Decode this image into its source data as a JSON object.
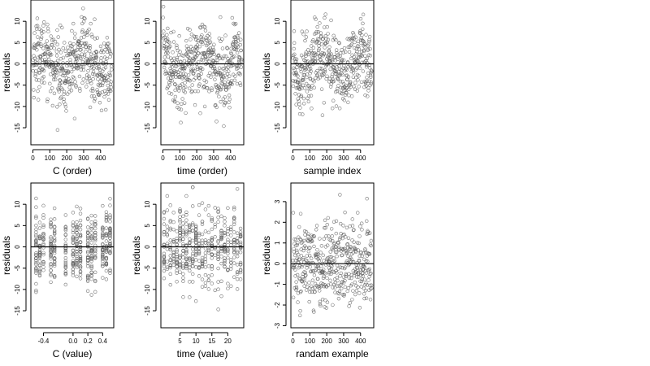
{
  "figure": {
    "panels_layout": "2x3 grid",
    "point_color": "#5a5a5a",
    "reference_line_color": "#000000"
  },
  "chart_data": [
    {
      "type": "scatter",
      "xlabel": "C (order)",
      "ylabel": "residuals",
      "xticks": [
        0,
        100,
        200,
        300,
        400
      ],
      "yticks": [
        -15,
        -10,
        -5,
        0,
        5,
        10
      ],
      "xlim": [
        -12,
        478
      ],
      "ylim": [
        -19,
        15
      ],
      "hline": 0,
      "n_points": 466,
      "pattern": "order"
    },
    {
      "type": "scatter",
      "xlabel": "time (order)",
      "ylabel": "residuals",
      "xticks": [
        0,
        100,
        200,
        300,
        400
      ],
      "yticks": [
        -15,
        -10,
        -5,
        0,
        5,
        10
      ],
      "xlim": [
        -12,
        478
      ],
      "ylim": [
        -19,
        15
      ],
      "hline": 0,
      "n_points": 466,
      "pattern": "order"
    },
    {
      "type": "scatter",
      "xlabel": "sample index",
      "ylabel": "residuals",
      "xticks": [
        0,
        100,
        200,
        300,
        400
      ],
      "yticks": [
        -15,
        -10,
        -5,
        0,
        5,
        10
      ],
      "xlim": [
        -12,
        478
      ],
      "ylim": [
        -19,
        15
      ],
      "hline": 0,
      "n_points": 466,
      "pattern": "order"
    },
    {
      "type": "scatter",
      "xlabel": "C (value)",
      "ylabel": "residuals",
      "xticks": [
        -0.4,
        0.0,
        0.2,
        0.4
      ],
      "xtick_labels": [
        "-0.4",
        "0.0",
        "0.2",
        "0.4"
      ],
      "yticks": [
        -15,
        -10,
        -5,
        0,
        5,
        10
      ],
      "xlim": [
        -0.57,
        0.55
      ],
      "ylim": [
        -19,
        15
      ],
      "hline": 0,
      "x_levels": [
        -0.5,
        -0.45,
        -0.4,
        -0.3,
        -0.25,
        -0.1,
        0.0,
        0.05,
        0.1,
        0.2,
        0.25,
        0.3,
        0.4,
        0.45,
        0.5
      ],
      "n_points": 466,
      "pattern": "levels"
    },
    {
      "type": "scatter",
      "xlabel": "time (value)",
      "ylabel": "residuals",
      "xticks": [
        5,
        10,
        15,
        20
      ],
      "yticks": [
        -15,
        -10,
        -5,
        0,
        5,
        10
      ],
      "xlim": [
        -1,
        25
      ],
      "ylim": [
        -19,
        15
      ],
      "hline": 0,
      "x_levels": [
        0,
        1,
        2,
        3,
        4,
        5,
        6,
        7,
        8,
        9,
        10,
        11,
        12,
        13,
        14,
        15,
        16,
        17,
        18,
        19,
        20,
        21,
        22,
        23,
        24
      ],
      "n_points": 466,
      "pattern": "levels"
    },
    {
      "type": "scatter",
      "xlabel": "randam example",
      "ylabel": "residuals",
      "xticks": [
        0,
        100,
        200,
        300,
        400
      ],
      "yticks": [
        -3,
        -2,
        -1,
        0,
        1,
        2,
        3
      ],
      "xlim": [
        -12,
        478
      ],
      "ylim": [
        -3.1,
        3.9
      ],
      "hline": 0,
      "n_points": 466,
      "pattern": "random"
    }
  ]
}
